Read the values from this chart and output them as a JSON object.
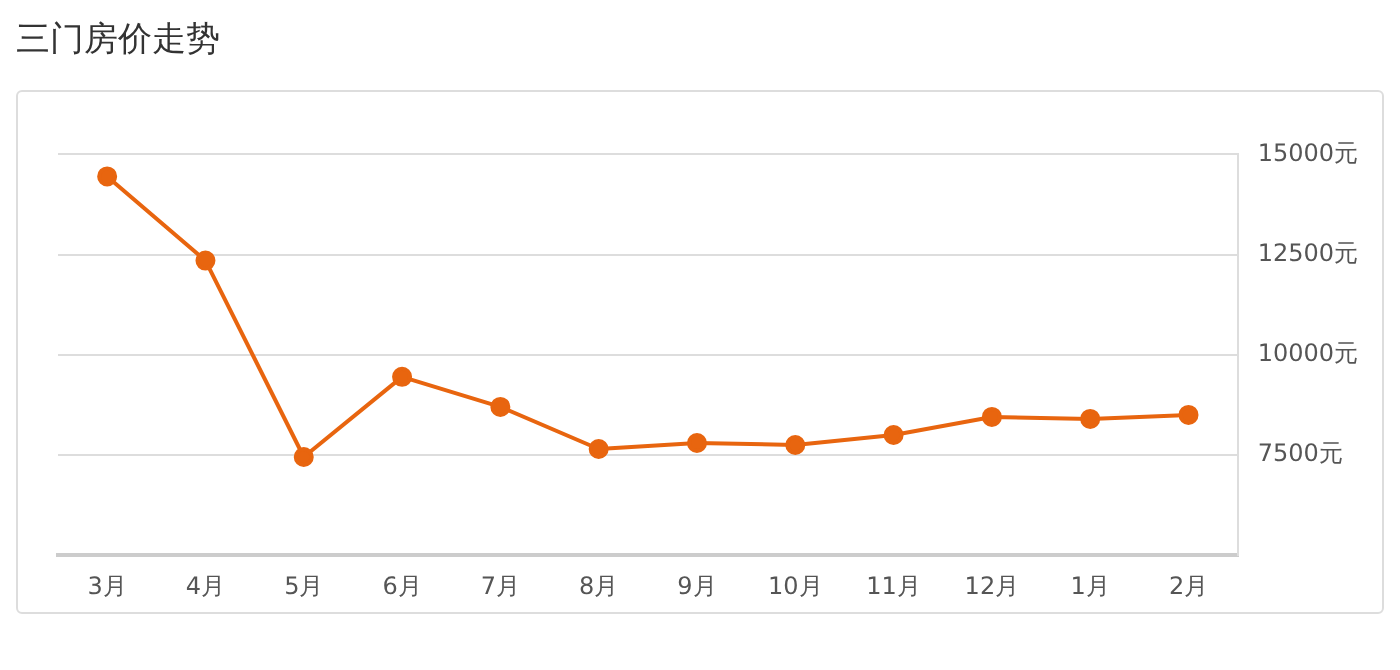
{
  "chart_data": {
    "type": "line",
    "title": "三门房价走势",
    "categories": [
      "3月",
      "4月",
      "5月",
      "6月",
      "7月",
      "8月",
      "9月",
      "10月",
      "11月",
      "12月",
      "1月",
      "2月"
    ],
    "series": [
      {
        "color": "#e8650f",
        "values": [
          14450,
          12350,
          7450,
          9450,
          8700,
          7650,
          7800,
          7750,
          8000,
          8450,
          8400,
          8500
        ]
      }
    ],
    "ylim": [
      5000,
      15000
    ],
    "yticks": [
      {
        "value": 5000,
        "label": null
      },
      {
        "value": 7500,
        "label": "7500元"
      },
      {
        "value": 10000,
        "label": "10000元"
      },
      {
        "value": 12500,
        "label": "12500元"
      },
      {
        "value": 15000,
        "label": "15000元"
      }
    ],
    "grid": "y",
    "marker": "circle",
    "legend": false
  }
}
